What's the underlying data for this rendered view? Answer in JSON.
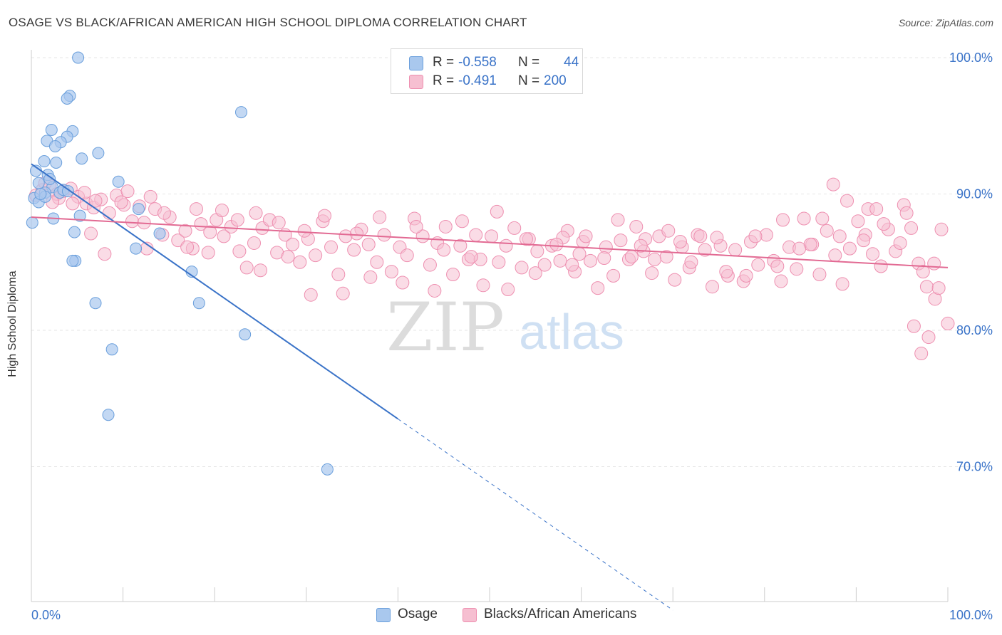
{
  "header": {
    "title": "OSAGE VS BLACK/AFRICAN AMERICAN HIGH SCHOOL DIPLOMA CORRELATION CHART",
    "source": "Source: ZipAtlas.com"
  },
  "watermark": {
    "zip": "ZIP",
    "atlas": "atlas"
  },
  "legend_top": {
    "rows": [
      {
        "r_label": "R =",
        "r_value": "-0.558",
        "n_label": "N =",
        "n_value": "44"
      },
      {
        "r_label": "R =",
        "r_value": "-0.491",
        "n_label": "N =",
        "n_value": "200"
      }
    ]
  },
  "legend_bottom": {
    "items": [
      {
        "label": "Osage"
      },
      {
        "label": "Blacks/African Americans"
      }
    ]
  },
  "colors": {
    "osage_fill": "#a9c8ee",
    "osage_stroke": "#6a9fdc",
    "osage_line": "#3a73c8",
    "black_fill": "#f6bfd1",
    "black_stroke": "#ee8fb0",
    "black_line": "#e26a93",
    "tick_label": "#3a73c8",
    "grid": "#e6e6e6"
  },
  "chart_data": {
    "type": "scatter",
    "title": "OSAGE VS BLACK/AFRICAN AMERICAN HIGH SCHOOL DIPLOMA CORRELATION CHART",
    "xlabel": "",
    "ylabel": "High School Diploma",
    "xlim": [
      0,
      100
    ],
    "ylim": [
      62,
      101
    ],
    "x_tick_labels": [
      "0.0%",
      "100.0%"
    ],
    "y_ticks": [
      70,
      80,
      90,
      100
    ],
    "y_tick_labels": [
      "70.0%",
      "80.0%",
      "90.0%",
      "100.0%"
    ],
    "grid": true,
    "legend_position": "top-center",
    "series": [
      {
        "name": "Osage",
        "color": "#a9c8ee",
        "R": -0.558,
        "N": 44,
        "trend": {
          "x0": 0,
          "y0": 92.2,
          "x1": 40,
          "y1": 73.5,
          "dashed_to_x": 70
        },
        "points": [
          [
            5.1,
            100
          ],
          [
            4.2,
            97.2
          ],
          [
            3.9,
            97
          ],
          [
            22.9,
            96
          ],
          [
            4.5,
            94.6
          ],
          [
            2.2,
            94.7
          ],
          [
            3.9,
            94.2
          ],
          [
            3.2,
            93.8
          ],
          [
            1.7,
            93.9
          ],
          [
            2.6,
            93.5
          ],
          [
            7.3,
            93
          ],
          [
            5.5,
            92.6
          ],
          [
            1.4,
            92.4
          ],
          [
            2.7,
            92.3
          ],
          [
            0.5,
            91.7
          ],
          [
            1.8,
            91.4
          ],
          [
            0.8,
            90.8
          ],
          [
            9.5,
            90.9
          ],
          [
            2.3,
            90.5
          ],
          [
            3.1,
            90.1
          ],
          [
            1.5,
            90.1
          ],
          [
            0.3,
            89.7
          ],
          [
            0.8,
            89.4
          ],
          [
            11.7,
            88.9
          ],
          [
            5.3,
            88.4
          ],
          [
            2.4,
            88.2
          ],
          [
            0.1,
            87.9
          ],
          [
            14,
            87.1
          ],
          [
            4.7,
            87.2
          ],
          [
            11.4,
            86
          ],
          [
            4.8,
            85.1
          ],
          [
            4.5,
            85.1
          ],
          [
            17.5,
            84.3
          ],
          [
            7.0,
            82
          ],
          [
            18.3,
            82
          ],
          [
            23.3,
            79.7
          ],
          [
            8.8,
            78.6
          ],
          [
            8.4,
            73.8
          ],
          [
            32.3,
            69.8
          ],
          [
            1.5,
            89.8
          ],
          [
            2.0,
            91.1
          ],
          [
            3.5,
            90.3
          ],
          [
            1.0,
            90.0
          ],
          [
            4.0,
            90.2
          ]
        ]
      },
      {
        "name": "Blacks/African Americans",
        "color": "#f6bfd1",
        "R": -0.491,
        "N": 200,
        "trend": {
          "x0": 0,
          "y0": 88.3,
          "x1": 100,
          "y1": 84.6
        },
        "points": [
          [
            0.5,
            89.9
          ],
          [
            1.2,
            90.3
          ],
          [
            2.0,
            90.6
          ],
          [
            2.8,
            90.0
          ],
          [
            3.5,
            90.2
          ],
          [
            4.3,
            90.4
          ],
          [
            5.1,
            89.8
          ],
          [
            6.0,
            89.3
          ],
          [
            6.8,
            89.0
          ],
          [
            7.6,
            89.6
          ],
          [
            8.5,
            88.6
          ],
          [
            9.3,
            89.9
          ],
          [
            10.1,
            89.2
          ],
          [
            11.0,
            88.0
          ],
          [
            11.8,
            89.1
          ],
          [
            12.6,
            86.0
          ],
          [
            13.5,
            88.9
          ],
          [
            14.3,
            87.0
          ],
          [
            15.1,
            88.3
          ],
          [
            16.0,
            86.6
          ],
          [
            16.8,
            87.3
          ],
          [
            17.6,
            86.0
          ],
          [
            18.5,
            87.8
          ],
          [
            19.3,
            85.7
          ],
          [
            20.2,
            88.1
          ],
          [
            21.0,
            86.9
          ],
          [
            21.8,
            87.6
          ],
          [
            22.7,
            85.8
          ],
          [
            23.5,
            84.6
          ],
          [
            24.3,
            86.4
          ],
          [
            25.2,
            87.5
          ],
          [
            26.0,
            88.1
          ],
          [
            26.8,
            85.7
          ],
          [
            27.7,
            87.0
          ],
          [
            28.5,
            86.3
          ],
          [
            29.3,
            85.0
          ],
          [
            30.2,
            86.7
          ],
          [
            31.0,
            85.5
          ],
          [
            31.8,
            88.0
          ],
          [
            32.7,
            86.1
          ],
          [
            33.5,
            84.1
          ],
          [
            34.3,
            86.9
          ],
          [
            35.2,
            85.9
          ],
          [
            36.0,
            87.4
          ],
          [
            36.8,
            86.3
          ],
          [
            37.7,
            85.0
          ],
          [
            38.5,
            87.0
          ],
          [
            39.3,
            84.3
          ],
          [
            40.2,
            86.1
          ],
          [
            41.0,
            85.5
          ],
          [
            41.8,
            88.2
          ],
          [
            42.7,
            86.9
          ],
          [
            43.5,
            84.8
          ],
          [
            44.3,
            86.4
          ],
          [
            45.2,
            87.6
          ],
          [
            46.0,
            84.1
          ],
          [
            46.8,
            86.2
          ],
          [
            47.7,
            85.2
          ],
          [
            48.5,
            87.0
          ],
          [
            49.3,
            83.3
          ],
          [
            50.2,
            86.9
          ],
          [
            51.0,
            85.0
          ],
          [
            51.8,
            86.2
          ],
          [
            52.7,
            87.5
          ],
          [
            53.5,
            84.6
          ],
          [
            54.3,
            86.7
          ],
          [
            55.2,
            85.8
          ],
          [
            56.0,
            84.8
          ],
          [
            56.8,
            86.2
          ],
          [
            57.7,
            85.1
          ],
          [
            58.5,
            87.3
          ],
          [
            59.3,
            84.3
          ],
          [
            60.2,
            86.5
          ],
          [
            61.0,
            85.1
          ],
          [
            61.8,
            83.1
          ],
          [
            62.7,
            86.1
          ],
          [
            63.5,
            84.0
          ],
          [
            64.3,
            86.6
          ],
          [
            65.2,
            85.2
          ],
          [
            66.0,
            87.6
          ],
          [
            66.8,
            85.8
          ],
          [
            67.7,
            84.2
          ],
          [
            68.5,
            86.9
          ],
          [
            69.3,
            85.4
          ],
          [
            70.2,
            83.7
          ],
          [
            71.0,
            86.1
          ],
          [
            71.8,
            84.6
          ],
          [
            72.7,
            87.0
          ],
          [
            73.5,
            85.9
          ],
          [
            74.3,
            83.2
          ],
          [
            75.2,
            86.2
          ],
          [
            76.0,
            84.0
          ],
          [
            76.8,
            85.9
          ],
          [
            77.7,
            83.6
          ],
          [
            78.5,
            86.5
          ],
          [
            79.3,
            84.8
          ],
          [
            80.2,
            87.0
          ],
          [
            81.0,
            85.1
          ],
          [
            81.8,
            83.6
          ],
          [
            82.7,
            86.1
          ],
          [
            83.5,
            84.5
          ],
          [
            84.3,
            88.2
          ],
          [
            85.2,
            86.3
          ],
          [
            86.0,
            84.1
          ],
          [
            86.8,
            87.3
          ],
          [
            87.7,
            85.5
          ],
          [
            88.5,
            83.4
          ],
          [
            89.3,
            86.0
          ],
          [
            90.2,
            88.0
          ],
          [
            91.0,
            87.0
          ],
          [
            91.8,
            85.6
          ],
          [
            92.7,
            84.7
          ],
          [
            93.5,
            87.4
          ],
          [
            94.3,
            85.8
          ],
          [
            95.2,
            89.2
          ],
          [
            96.0,
            87.5
          ],
          [
            96.8,
            84.9
          ],
          [
            97.7,
            83.2
          ],
          [
            98.5,
            84.9
          ],
          [
            99.3,
            87.4
          ],
          [
            87.5,
            90.7
          ],
          [
            89.0,
            89.5
          ],
          [
            95.5,
            88.6
          ],
          [
            96.3,
            80.3
          ],
          [
            97.1,
            78.3
          ],
          [
            97.9,
            79.5
          ],
          [
            98.6,
            82.3
          ],
          [
            100,
            80.5
          ],
          [
            93.0,
            87.8
          ],
          [
            91.3,
            88.9
          ],
          [
            85.0,
            86.3
          ],
          [
            82.0,
            88.1
          ],
          [
            78.0,
            84.0
          ],
          [
            74.8,
            86.8
          ],
          [
            72.0,
            85.0
          ],
          [
            69.5,
            87.3
          ],
          [
            67.0,
            86.7
          ],
          [
            64.0,
            88.1
          ],
          [
            60.5,
            86.9
          ],
          [
            58.0,
            86.8
          ],
          [
            55.0,
            84.2
          ],
          [
            52.0,
            83.0
          ],
          [
            49.0,
            85.2
          ],
          [
            47.0,
            88.0
          ],
          [
            44.0,
            82.9
          ],
          [
            40.5,
            83.5
          ],
          [
            37.0,
            83.9
          ],
          [
            34.0,
            82.7
          ],
          [
            30.5,
            82.6
          ],
          [
            28.0,
            85.4
          ],
          [
            25.0,
            84.4
          ],
          [
            22.5,
            88.1
          ],
          [
            19.5,
            87.2
          ],
          [
            17.0,
            86.1
          ],
          [
            14.5,
            88.6
          ],
          [
            12.3,
            87.9
          ],
          [
            10.5,
            90.2
          ],
          [
            8.0,
            85.6
          ],
          [
            6.5,
            87.1
          ],
          [
            4.5,
            89.3
          ],
          [
            3.0,
            89.7
          ],
          [
            1.5,
            90.8
          ],
          [
            2.3,
            89.4
          ],
          [
            5.8,
            90.1
          ],
          [
            7.0,
            89.5
          ],
          [
            9.8,
            89.4
          ],
          [
            13.0,
            89.8
          ],
          [
            18.0,
            88.9
          ],
          [
            20.8,
            88.8
          ],
          [
            24.5,
            88.6
          ],
          [
            27.0,
            87.9
          ],
          [
            29.8,
            87.3
          ],
          [
            32.0,
            88.4
          ],
          [
            35.5,
            87.1
          ],
          [
            38.0,
            88.3
          ],
          [
            42.0,
            87.6
          ],
          [
            45.0,
            85.9
          ],
          [
            48.0,
            85.4
          ],
          [
            50.8,
            88.7
          ],
          [
            54.0,
            86.7
          ],
          [
            57.3,
            86.3
          ],
          [
            59.8,
            85.6
          ],
          [
            62.5,
            85.3
          ],
          [
            65.5,
            85.4
          ],
          [
            68.0,
            85.2
          ],
          [
            70.8,
            86.5
          ],
          [
            73.0,
            86.9
          ],
          [
            75.8,
            84.3
          ],
          [
            79.0,
            86.9
          ],
          [
            81.4,
            84.7
          ],
          [
            83.8,
            86.0
          ],
          [
            86.3,
            88.2
          ],
          [
            88.2,
            86.9
          ],
          [
            90.8,
            86.6
          ],
          [
            92.2,
            88.9
          ],
          [
            94.8,
            86.4
          ],
          [
            97.3,
            84.3
          ],
          [
            99.0,
            83.1
          ],
          [
            66.5,
            86.2
          ],
          [
            59.0,
            84.8
          ]
        ]
      }
    ]
  }
}
